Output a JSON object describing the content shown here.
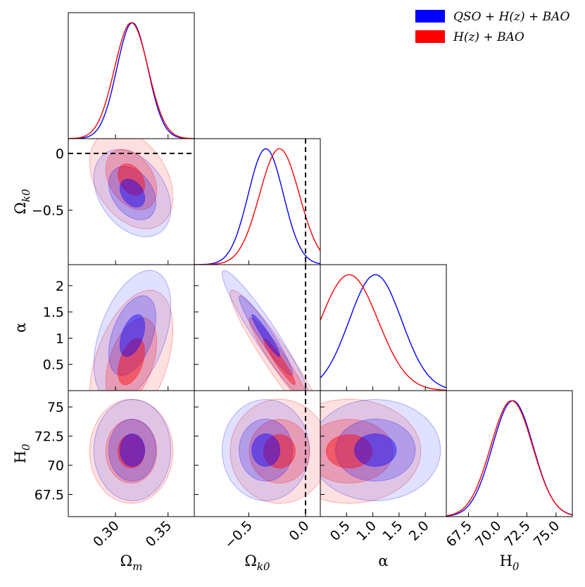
{
  "chart_data": {
    "type": "corner",
    "parameters": [
      {
        "key": "om",
        "label": "Ω",
        "sub": "m"
      },
      {
        "key": "ok",
        "label": "Ω",
        "sub": "k0"
      },
      {
        "key": "al",
        "label": "α",
        "sub": ""
      },
      {
        "key": "h0",
        "label": "H",
        "sub": "0"
      }
    ],
    "ranges": {
      "om": [
        0.255,
        0.375
      ],
      "ok": [
        -0.98,
        0.13
      ],
      "al": [
        0.0,
        2.4
      ],
      "h0": [
        65.6,
        76.4
      ]
    },
    "ticks": {
      "om": {
        "values": [
          0.3,
          0.35
        ],
        "labels": [
          "0.30",
          "0.35"
        ]
      },
      "ok": {
        "values": [
          -0.5,
          0.0
        ],
        "labels": [
          "−0.5",
          "0.0"
        ]
      },
      "ok_y": {
        "values": [
          -0.5,
          0.0
        ],
        "labels": [
          "−0.5",
          "0"
        ]
      },
      "al": {
        "values": [
          0.5,
          1.0,
          1.5,
          2.0
        ],
        "labels": [
          "0.5",
          "1.0",
          "1.5",
          "2.0"
        ]
      },
      "al_y": {
        "values": [
          0.5,
          1.0,
          1.5,
          2.0
        ],
        "labels": [
          "0.5",
          "1",
          "1.5",
          "2"
        ]
      },
      "h0": {
        "values": [
          67.5,
          70.0,
          72.5,
          75.0
        ],
        "labels": [
          "67.5",
          "70.0",
          "72.5",
          "75.0"
        ]
      },
      "h0_y": {
        "values": [
          67.5,
          70.0,
          72.5,
          75.0
        ],
        "labels": [
          "67.5",
          "70",
          "72.5",
          "75"
        ]
      }
    },
    "series": [
      {
        "name": "QSO + H(z) + BAO",
        "color": "#0000ff",
        "mean": {
          "om": 0.316,
          "ok": -0.35,
          "al": 1.05,
          "h0": 71.3
        },
        "sd": {
          "om": 0.0148,
          "ok": 0.155,
          "al": 0.5,
          "h0": 1.75
        }
      },
      {
        "name": "H(z) + BAO",
        "color": "#ff0000",
        "mean": {
          "om": 0.315,
          "ok": -0.23,
          "al": 0.55,
          "h0": 71.2
        },
        "sd": {
          "om": 0.016,
          "ok": 0.175,
          "al": 0.55,
          "h0": 1.8
        }
      }
    ],
    "correlations": {
      "om-ok": -0.35,
      "om-al": 0.45,
      "ok-al": -0.95,
      "om-h0": 0.0,
      "ok-h0": 0.0,
      "al-h0": 0.0
    },
    "reference_lines": {
      "ok": 0.0
    },
    "legend": {
      "position": "top-right",
      "entries": [
        "QSO + H(z) + BAO",
        "H(z) + BAO"
      ]
    }
  }
}
